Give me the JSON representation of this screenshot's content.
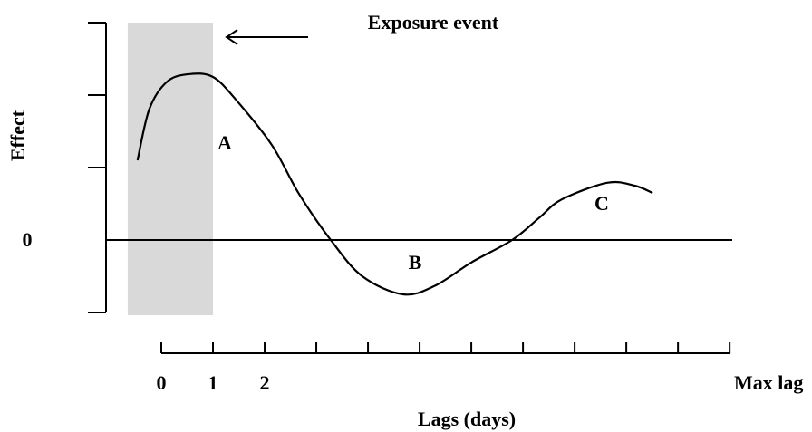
{
  "chart_data": {
    "type": "line",
    "title": "Exposure event",
    "y_label": "Effect",
    "x_label": "Lags (days)",
    "annotations": [
      "A",
      "B",
      "C"
    ],
    "exposure_span": [
      -0.65,
      1
    ],
    "xlim": [
      -1.07,
      11.05
    ],
    "ylim": [
      -1,
      3
    ],
    "xticks": [
      0,
      1,
      2,
      {
        "value": 11,
        "label": "Max lag"
      }
    ],
    "xticks_unlabeled": [
      3,
      4,
      5,
      6,
      7,
      8,
      9,
      10
    ],
    "yticks": [
      0
    ],
    "yticks_unlabeled": [
      -1,
      1,
      2,
      3
    ],
    "series": [
      {
        "color": "#000000",
        "x": [
          -0.46,
          -0.23,
          0.12,
          0.56,
          1.0,
          1.44,
          2.14,
          2.67,
          3.28,
          3.89,
          4.68,
          5.3,
          6.0,
          6.79,
          7.32,
          7.75,
          8.63,
          9.16,
          9.51
        ],
        "values": [
          1.1,
          1.81,
          2.19,
          2.29,
          2.25,
          1.94,
          1.31,
          0.63,
          0,
          -0.5,
          -0.75,
          -0.63,
          -0.31,
          0,
          0.31,
          0.56,
          0.79,
          0.75,
          0.65
        ]
      }
    ]
  }
}
